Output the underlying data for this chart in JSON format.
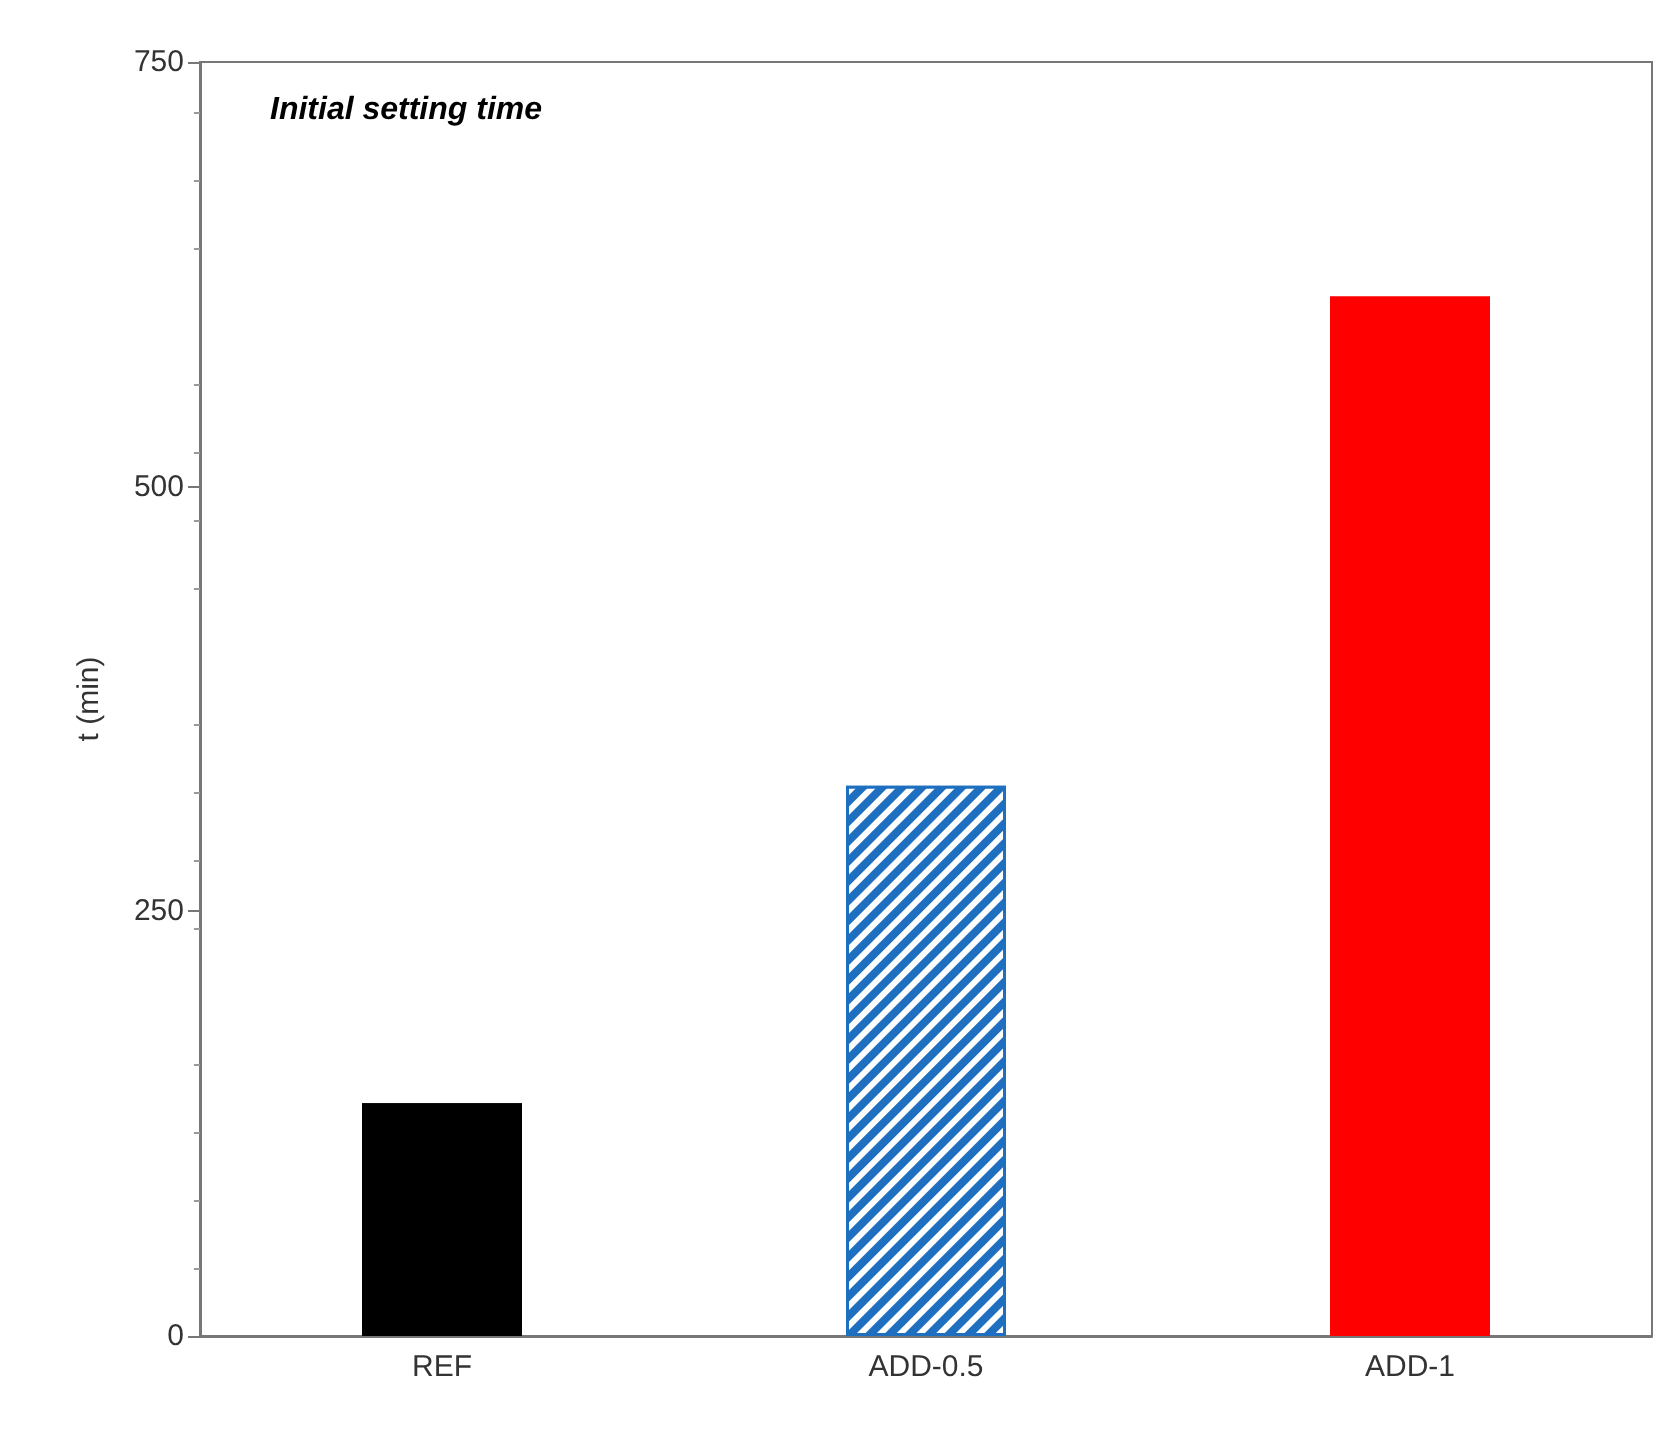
{
  "chart_data": {
    "type": "bar",
    "title": "Initial setting time",
    "ylabel": "t (min)",
    "categories": [
      "REF",
      "ADD-0.5",
      "ADD-1"
    ],
    "values": [
      137,
      324,
      612
    ],
    "colors": [
      "#000000",
      "#1f6fc0",
      "#ff0000"
    ],
    "ylim": [
      0,
      750
    ],
    "yticks": [
      0,
      250,
      500,
      750
    ],
    "grid": false
  }
}
